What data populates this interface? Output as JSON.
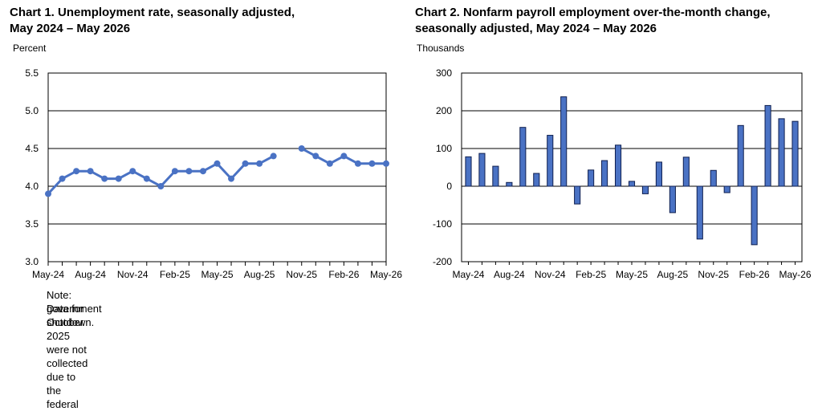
{
  "charts": [
    {
      "title_line1": "Chart 1. Unemployment rate, seasonally adjusted,",
      "title_line2": "May 2024 – May 2026",
      "unit": "Percent",
      "note_line1": "Note: Data for October 2025 were not collected due to the federal",
      "note_line2": "government shutdown."
    },
    {
      "title_line1": "Chart 2. Nonfarm payroll employment over-the-month change,",
      "title_line2": "seasonally adjusted, May 2024 – May 2026",
      "unit": "Thousands"
    }
  ],
  "colors": {
    "line": "#4a72c4",
    "bar_fill": "#4a72c4",
    "bar_stroke": "#0f1f4f",
    "grid": "#000000"
  },
  "chart_data": [
    {
      "type": "line",
      "title": "Chart 1. Unemployment rate, seasonally adjusted, May 2024 – May 2026",
      "ylabel": "Percent",
      "x": [
        "May-24",
        "Jun-24",
        "Jul-24",
        "Aug-24",
        "Sep-24",
        "Oct-24",
        "Nov-24",
        "Dec-24",
        "Jan-25",
        "Feb-25",
        "Mar-25",
        "Apr-25",
        "May-25",
        "Jun-25",
        "Jul-25",
        "Aug-25",
        "Sep-25",
        "Oct-25",
        "Nov-25",
        "Dec-25",
        "Jan-26",
        "Feb-26",
        "Mar-26",
        "Apr-26",
        "May-26"
      ],
      "x_tick_labels": [
        "May-24",
        "Aug-24",
        "Nov-24",
        "Feb-25",
        "May-25",
        "Aug-25",
        "Nov-25",
        "Feb-26",
        "May-26"
      ],
      "values": [
        3.9,
        4.1,
        4.2,
        4.2,
        4.1,
        4.1,
        4.2,
        4.1,
        4.0,
        4.2,
        4.2,
        4.2,
        4.3,
        4.1,
        4.3,
        4.3,
        4.4,
        null,
        4.5,
        4.4,
        4.3,
        4.4,
        4.3,
        4.3,
        4.3
      ],
      "ylim": [
        3.0,
        5.5
      ],
      "yticks": [
        3.0,
        3.5,
        4.0,
        4.5,
        5.0,
        5.5
      ],
      "grid": true
    },
    {
      "type": "bar",
      "title": "Chart 2. Nonfarm payroll employment over-the-month change, seasonally adjusted, May 2024 – May 2026",
      "ylabel": "Thousands",
      "categories": [
        "May-24",
        "Jun-24",
        "Jul-24",
        "Aug-24",
        "Sep-24",
        "Oct-24",
        "Nov-24",
        "Dec-24",
        "Jan-25",
        "Feb-25",
        "Mar-25",
        "Apr-25",
        "May-25",
        "Jun-25",
        "Jul-25",
        "Aug-25",
        "Sep-25",
        "Oct-25",
        "Nov-25",
        "Dec-25",
        "Jan-26",
        "Feb-26",
        "Mar-26",
        "Apr-26",
        "May-26"
      ],
      "x_tick_labels": [
        "May-24",
        "Aug-24",
        "Nov-24",
        "Feb-25",
        "May-25",
        "Aug-25",
        "Nov-25",
        "Feb-26",
        "May-26"
      ],
      "values": [
        78,
        87,
        53,
        10,
        156,
        34,
        135,
        237,
        -47,
        43,
        68,
        109,
        13,
        -20,
        64,
        -70,
        77,
        -140,
        42,
        -17,
        161,
        -155,
        214,
        179,
        172
      ],
      "ylim": [
        -200,
        300
      ],
      "yticks": [
        -200,
        -100,
        0,
        100,
        200,
        300
      ],
      "grid": true
    }
  ]
}
